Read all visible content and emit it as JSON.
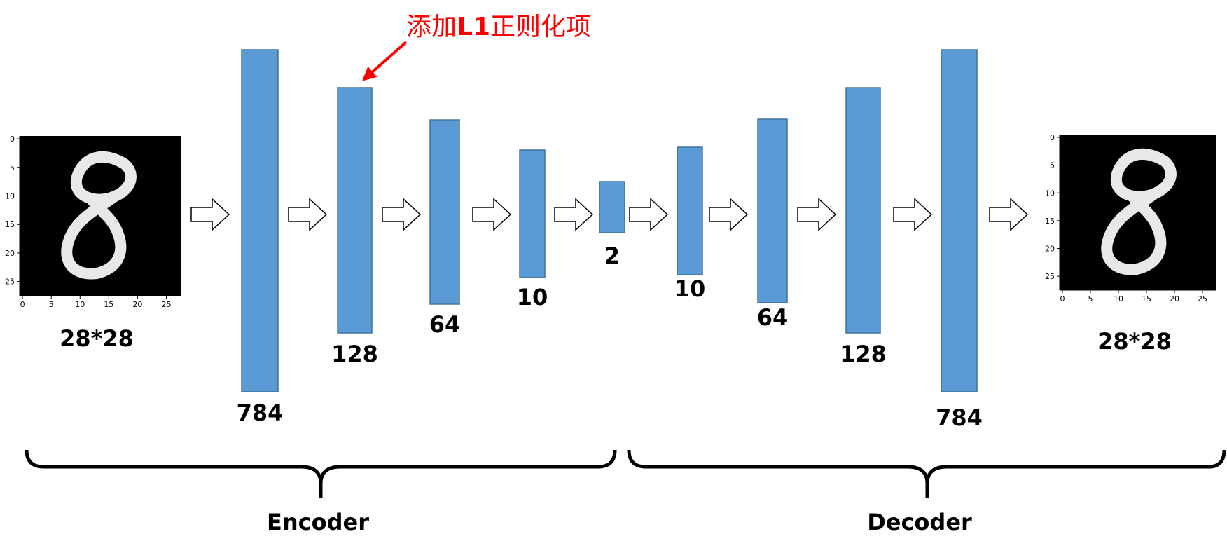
{
  "colors": {
    "layer_fill": "#5B9BD5",
    "layer_stroke": "#41719C",
    "annotation": "#FF0000",
    "image_bg": "#000000",
    "ink": "#000000"
  },
  "input_image": {
    "icon": "digit-8-image",
    "size_label": "28*28",
    "x_ticks": [
      "0",
      "5",
      "10",
      "15",
      "20",
      "25"
    ],
    "y_ticks": [
      "0",
      "5",
      "10",
      "15",
      "20",
      "25"
    ]
  },
  "output_image": {
    "icon": "digit-8-image",
    "size_label": "28*28",
    "x_ticks": [
      "0",
      "5",
      "10",
      "15",
      "20",
      "25"
    ],
    "y_ticks": [
      "0",
      "5",
      "10",
      "15",
      "20",
      "25"
    ]
  },
  "layers": [
    {
      "label": "784",
      "group": "encoder"
    },
    {
      "label": "128",
      "group": "encoder"
    },
    {
      "label": "64",
      "group": "encoder"
    },
    {
      "label": "10",
      "group": "encoder"
    },
    {
      "label": "2",
      "group": "bottleneck"
    },
    {
      "label": "10",
      "group": "decoder"
    },
    {
      "label": "64",
      "group": "decoder"
    },
    {
      "label": "128",
      "group": "decoder"
    },
    {
      "label": "784",
      "group": "decoder"
    }
  ],
  "annotation": {
    "text_prefix": "添加",
    "text_bold": "L1",
    "text_suffix": "正则化项",
    "icon": "red-arrow-icon"
  },
  "encoder_label": "Encoder",
  "decoder_label": "Decoder"
}
